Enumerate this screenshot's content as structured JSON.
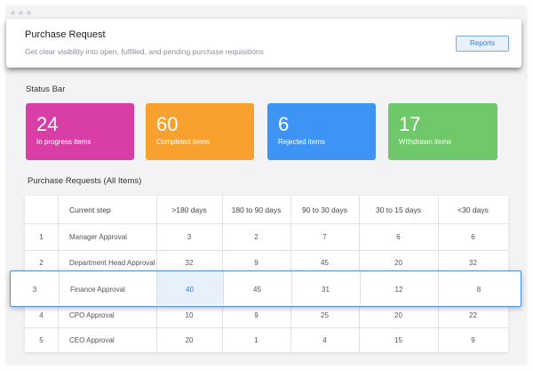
{
  "header": {
    "title": "Purchase Request",
    "subtitle": "Get clear visibility into open, fulfilled, and pending purchase requisitions",
    "reports_label": "Reports"
  },
  "status_section": {
    "title": "Status Bar"
  },
  "stats": [
    {
      "value": "24",
      "label": "In progress items",
      "color": "#d93ea6"
    },
    {
      "value": "60",
      "label": "Completed items",
      "color": "#f8a12f"
    },
    {
      "value": "6",
      "label": "Rejected items",
      "color": "#3e94f5"
    },
    {
      "value": "17",
      "label": "Withdrawn items",
      "color": "#6fc86a"
    }
  ],
  "table": {
    "title": "Purchase Requests (All Items)",
    "columns": [
      "",
      "Current step",
      ">180 days",
      "180 to 90 days",
      "90 to 30 days",
      "30 to 15 days",
      "<30 days"
    ],
    "rows": [
      {
        "num": "1",
        "step": "Manager Approval",
        "values": [
          "3",
          "2",
          "7",
          "6",
          "6"
        ]
      },
      {
        "num": "2",
        "step": "Department Head Approval",
        "values": [
          "32",
          "9",
          "45",
          "20",
          "32"
        ]
      },
      {
        "num": "3",
        "step": "Finance Approval",
        "values": [
          "40",
          "45",
          "31",
          "12",
          "8"
        ]
      },
      {
        "num": "4",
        "step": "CPO Approval",
        "values": [
          "10",
          "9",
          "25",
          "20",
          "22"
        ]
      },
      {
        "num": "5",
        "step": "CEO Approval",
        "values": [
          "20",
          "1",
          "4",
          "15",
          "9"
        ]
      }
    ],
    "highlight_color": "#3a7bd5"
  }
}
